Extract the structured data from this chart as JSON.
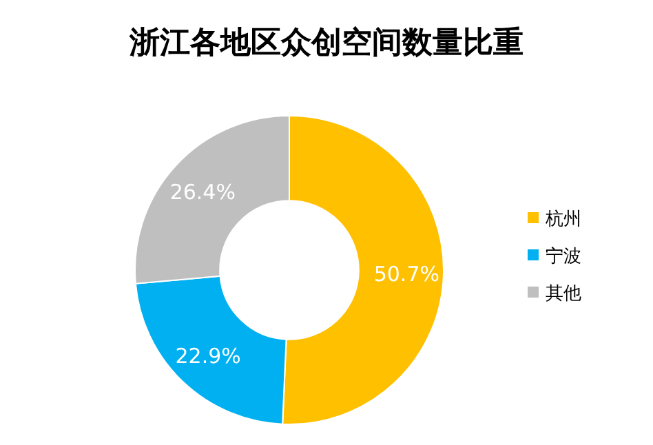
{
  "chart_data": {
    "type": "donut",
    "title": "浙江各地区众创空间数量比重",
    "categories": [
      "杭州",
      "宁波",
      "其他"
    ],
    "values": [
      50.7,
      22.9,
      26.4
    ],
    "colors": [
      "#ffc000",
      "#00b0f0",
      "#bfbfbf"
    ],
    "value_labels": [
      "50.7%",
      "22.9%",
      "26.4%"
    ],
    "legend": "right"
  }
}
